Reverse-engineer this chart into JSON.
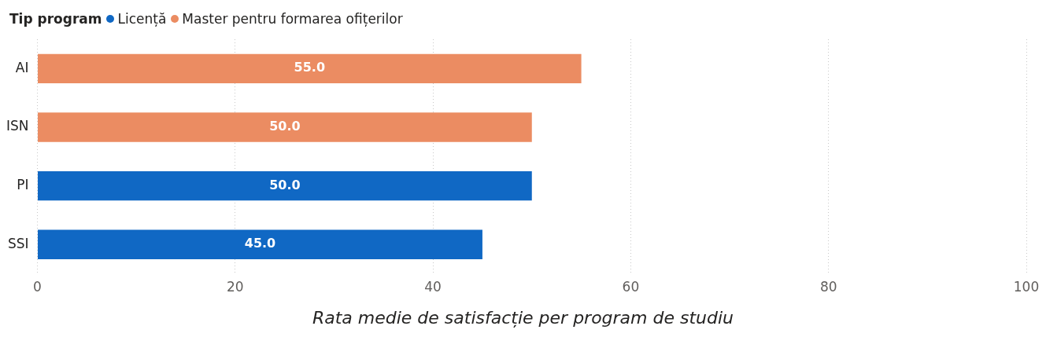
{
  "chart_data": {
    "type": "bar",
    "orientation": "horizontal",
    "xlabel": "Rata medie de satisfacție per program de studiu",
    "legend_title": "Tip program",
    "legend": "top left",
    "categories": [
      "AI",
      "ISN",
      "PI",
      "SSI"
    ],
    "series": [
      {
        "name": "Licență",
        "color": "#1068c4",
        "values": [
          null,
          null,
          50,
          45
        ],
        "value_labels": [
          null,
          null,
          "50.0",
          "45.0"
        ]
      },
      {
        "name": "Master pentru formarea ofițerilor",
        "color": "#eb8c62",
        "values": [
          55,
          50,
          null,
          null
        ],
        "value_labels": [
          "55.0",
          "50.0",
          null,
          null
        ]
      }
    ],
    "xlim": [
      0,
      100
    ],
    "xticks": [
      0,
      20,
      40,
      60,
      80,
      100
    ],
    "grid": "x"
  }
}
